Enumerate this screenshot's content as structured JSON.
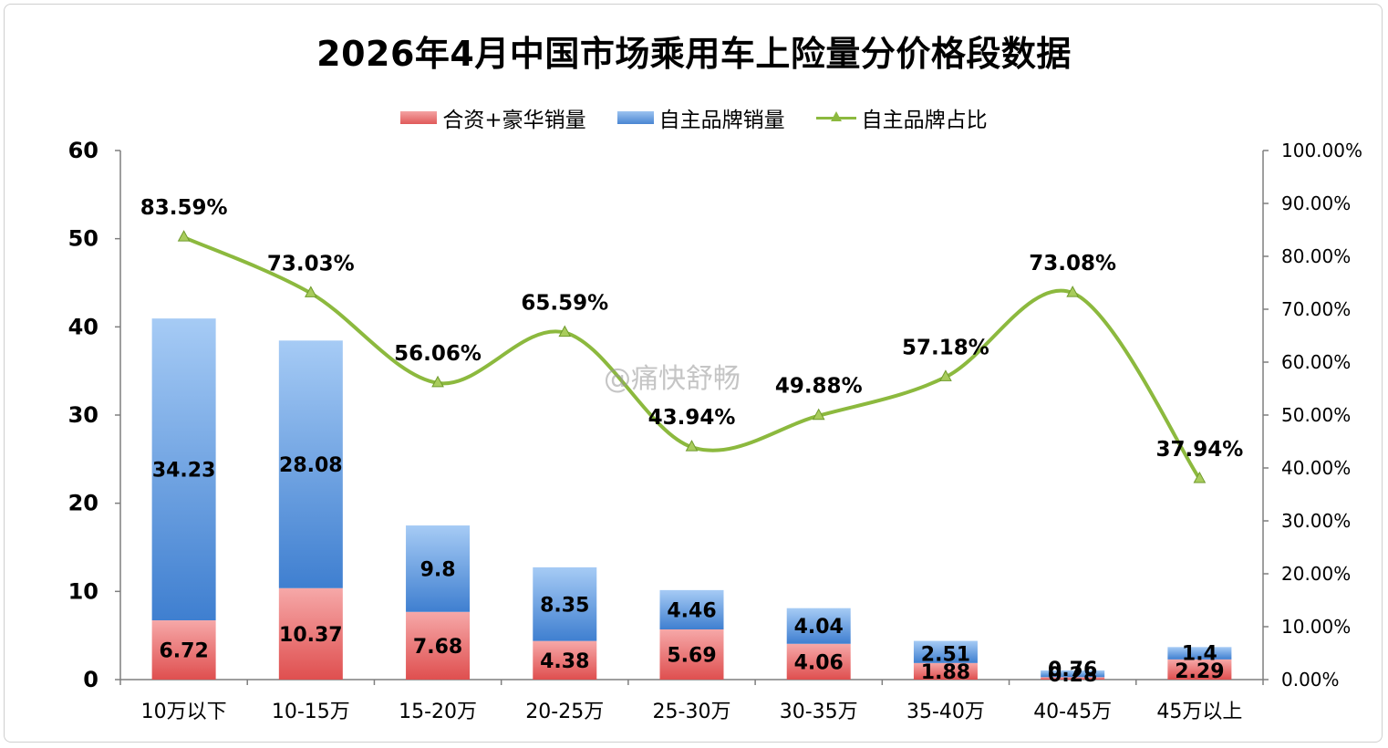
{
  "title": "2026年4月中国市场乘用车上险量分价格段数据",
  "legend": {
    "series1": "合资+豪华销量",
    "series2": "自主品牌销量",
    "series3": "自主品牌占比"
  },
  "watermark": "@痛快舒畅",
  "colors": {
    "red_top": "#f6a8a8",
    "red_bottom": "#df4f4f",
    "blue_top": "#a6cbf5",
    "blue_bottom": "#3f7fd0",
    "line": "#8cb93e"
  },
  "chart_data": {
    "type": "bar",
    "stacked": true,
    "categories": [
      "10万以下",
      "10-15万",
      "15-20万",
      "20-25万",
      "25-30万",
      "30-35万",
      "35-40万",
      "40-45万",
      "45万以上"
    ],
    "series": [
      {
        "name": "合资+豪华销量",
        "values": [
          6.72,
          10.37,
          7.68,
          4.38,
          5.69,
          4.06,
          1.88,
          0.28,
          2.29
        ]
      },
      {
        "name": "自主品牌销量",
        "values": [
          34.23,
          28.08,
          9.8,
          8.35,
          4.46,
          4.04,
          2.51,
          0.76,
          1.4
        ]
      }
    ],
    "line_series": {
      "name": "自主品牌占比",
      "values": [
        83.59,
        73.03,
        56.06,
        65.59,
        43.94,
        49.88,
        57.18,
        73.08,
        37.94
      ],
      "labels": [
        "83.59%",
        "73.03%",
        "56.06%",
        "65.59%",
        "43.94%",
        "49.88%",
        "57.18%",
        "73.08%",
        "37.94%"
      ],
      "axis": "right"
    },
    "ylim": [
      0,
      60
    ],
    "yticks": [
      "0",
      "10",
      "20",
      "30",
      "40",
      "50",
      "60"
    ],
    "y2lim": [
      0,
      100
    ],
    "y2ticks": [
      "0.00%",
      "10.00%",
      "20.00%",
      "30.00%",
      "40.00%",
      "50.00%",
      "60.00%",
      "70.00%",
      "80.00%",
      "90.00%",
      "100.00%"
    ],
    "grid": false,
    "legend_position": "top"
  }
}
